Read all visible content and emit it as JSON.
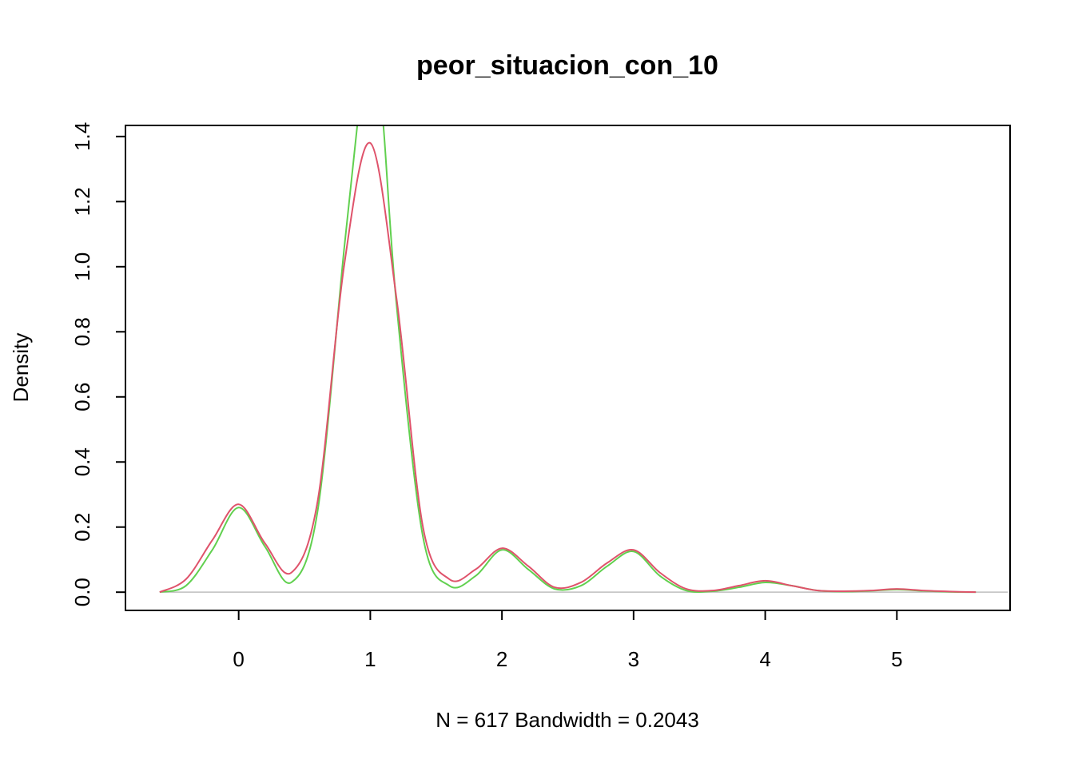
{
  "chart_data": {
    "type": "line",
    "title": "peor_situacion_con_10",
    "xlabel": "N = 617   Bandwidth = 0.2043",
    "ylabel": "Density",
    "xlim": [
      -0.86,
      5.86
    ],
    "ylim": [
      -0.056,
      1.434
    ],
    "x_ticks": [
      0,
      1,
      2,
      3,
      4,
      5
    ],
    "y_ticks": [
      0.0,
      0.2,
      0.4,
      0.6,
      0.8,
      1.0,
      1.2,
      1.4
    ],
    "x_tick_labels": [
      "0",
      "1",
      "2",
      "3",
      "4",
      "5"
    ],
    "y_tick_labels": [
      "0.0",
      "0.2",
      "0.4",
      "0.6",
      "0.8",
      "1.0",
      "1.2",
      "1.4"
    ],
    "grid": false,
    "legend": "none",
    "baseline": 0,
    "series": [
      {
        "color": "#DF536B",
        "x": [
          -0.6,
          -0.4,
          -0.2,
          0.0,
          0.2,
          0.4,
          0.6,
          0.8,
          1.0,
          1.2,
          1.4,
          1.6,
          1.8,
          2.0,
          2.2,
          2.4,
          2.6,
          2.8,
          3.0,
          3.2,
          3.4,
          3.6,
          3.8,
          4.0,
          4.2,
          4.4,
          4.6,
          4.8,
          5.0,
          5.2,
          5.4,
          5.6
        ],
        "y": [
          0.0,
          0.04,
          0.16,
          0.27,
          0.15,
          0.06,
          0.28,
          1.0,
          1.38,
          0.9,
          0.2,
          0.04,
          0.07,
          0.135,
          0.08,
          0.015,
          0.03,
          0.09,
          0.13,
          0.06,
          0.01,
          0.005,
          0.02,
          0.035,
          0.02,
          0.005,
          0.003,
          0.005,
          0.01,
          0.005,
          0.002,
          0.0
        ]
      },
      {
        "color": "#61D04F",
        "x": [
          -0.6,
          -0.4,
          -0.2,
          0.0,
          0.2,
          0.4,
          0.6,
          0.8,
          0.9,
          0.95,
          1.05,
          1.1,
          1.2,
          1.4,
          1.6,
          1.8,
          2.0,
          2.2,
          2.4,
          2.6,
          2.8,
          3.0,
          3.2,
          3.4,
          3.6,
          3.8,
          4.0,
          4.2,
          4.4,
          4.6,
          4.8,
          5.0,
          5.2,
          5.4,
          5.6
        ],
        "y": [
          0.0,
          0.02,
          0.13,
          0.26,
          0.14,
          0.03,
          0.25,
          1.05,
          1.43,
          1.6,
          1.6,
          1.43,
          0.88,
          0.17,
          0.02,
          0.05,
          0.13,
          0.07,
          0.01,
          0.02,
          0.08,
          0.125,
          0.05,
          0.005,
          0.003,
          0.015,
          0.03,
          0.02,
          0.005,
          0.002,
          0.004,
          0.008,
          0.004,
          0.001,
          0.0
        ]
      }
    ]
  }
}
